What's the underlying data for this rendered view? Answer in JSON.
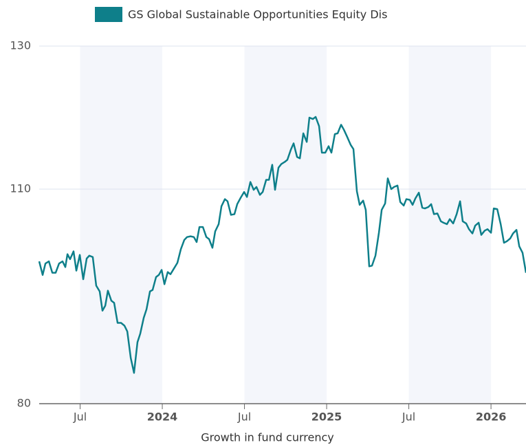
{
  "chart_data": {
    "type": "line",
    "x_title": "Growth in fund currency",
    "xlim": [
      2023.251,
      2026.213
    ],
    "xticks": [
      {
        "value": 2023.5,
        "label": "Jul"
      },
      2024,
      {
        "value": 2024.5,
        "label": "Jul"
      },
      2025,
      {
        "value": 2025.5,
        "label": "Jul"
      },
      2026
    ],
    "ylim": [
      80,
      130
    ],
    "yticks": [
      80,
      110,
      130
    ],
    "grid": true,
    "legend": "top",
    "series": [
      {
        "name": "GS Global Sustainable Opportunities Equity Dis",
        "color": "#0e7f8a",
        "x": [
          2023.251,
          2023.272,
          2023.289,
          2023.31,
          2023.331,
          2023.351,
          2023.372,
          2023.393,
          2023.41,
          2023.423,
          2023.439,
          2023.46,
          2023.477,
          2023.498,
          2023.519,
          2023.54,
          2023.556,
          2023.577,
          2023.598,
          2023.619,
          2023.636,
          2023.653,
          2023.669,
          2023.69,
          2023.707,
          2023.728,
          2023.749,
          2023.77,
          2023.787,
          2023.808,
          2023.828,
          2023.849,
          2023.866,
          2023.887,
          2023.904,
          2023.925,
          2023.941,
          2023.962,
          2023.979,
          2023.996,
          2024.013,
          2024.033,
          2024.05,
          2024.071,
          2024.092,
          2024.113,
          2024.134,
          2024.151,
          2024.172,
          2024.192,
          2024.209,
          2024.226,
          2024.247,
          2024.268,
          2024.285,
          2024.305,
          2024.322,
          2024.343,
          2024.36,
          2024.381,
          2024.397,
          2024.418,
          2024.439,
          2024.456,
          2024.477,
          2024.498,
          2024.515,
          2024.536,
          2024.556,
          2024.573,
          2024.594,
          2024.611,
          2024.632,
          2024.649,
          2024.669,
          2024.686,
          2024.707,
          2024.724,
          2024.745,
          2024.761,
          2024.782,
          2024.799,
          2024.82,
          2024.837,
          2024.858,
          2024.879,
          2024.895,
          2024.916,
          2024.933,
          2024.954,
          2024.971,
          2024.992,
          2025.012,
          2025.029,
          2025.05,
          2025.067,
          2025.088,
          2025.105,
          2025.125,
          2025.146,
          2025.163,
          2025.184,
          2025.201,
          2025.222,
          2025.238,
          2025.259,
          2025.276,
          2025.297,
          2025.318,
          2025.335,
          2025.356,
          2025.372,
          2025.393,
          2025.41,
          2025.431,
          2025.448,
          2025.469,
          2025.485,
          2025.506,
          2025.523,
          2025.54,
          2025.561,
          2025.582,
          2025.598,
          2025.619,
          2025.636,
          2025.653,
          2025.674,
          2025.695,
          2025.711,
          2025.732,
          2025.749,
          2025.77,
          2025.791,
          2025.812,
          2025.828,
          2025.849,
          2025.866,
          2025.887,
          2025.904,
          2025.925,
          2025.941,
          2025.962,
          2025.979,
          2026.0,
          2026.017,
          2026.038,
          2026.059,
          2026.079,
          2026.096,
          2026.117,
          2026.134,
          2026.155,
          2026.172,
          2026.192,
          2026.213
        ],
        "values": [
          99.9,
          98.0,
          99.6,
          99.9,
          98.3,
          98.3,
          99.6,
          99.9,
          99.1,
          100.9,
          100.2,
          101.3,
          98.6,
          100.8,
          97.4,
          100.3,
          100.7,
          100.5,
          96.5,
          95.7,
          93.0,
          93.7,
          95.8,
          94.4,
          94.1,
          91.3,
          91.3,
          90.9,
          90.1,
          86.4,
          84.3,
          88.6,
          89.8,
          92.0,
          93.2,
          95.7,
          95.9,
          97.7,
          98.0,
          98.7,
          96.7,
          98.4,
          98.1,
          98.9,
          99.7,
          101.6,
          102.9,
          103.3,
          103.4,
          103.3,
          102.6,
          104.7,
          104.7,
          103.3,
          103.0,
          101.8,
          104.1,
          105.1,
          107.6,
          108.6,
          108.3,
          106.4,
          106.5,
          107.9,
          108.8,
          109.6,
          108.9,
          111.0,
          109.9,
          110.3,
          109.2,
          109.6,
          111.3,
          111.3,
          113.4,
          109.9,
          113.0,
          113.5,
          113.8,
          114.1,
          115.5,
          116.4,
          114.5,
          114.3,
          117.8,
          116.6,
          120.0,
          119.8,
          120.1,
          118.8,
          115.1,
          115.1,
          116.0,
          115.1,
          117.7,
          117.8,
          119.0,
          118.3,
          117.3,
          116.2,
          115.6,
          109.7,
          107.8,
          108.4,
          107.1,
          99.2,
          99.3,
          100.7,
          103.9,
          107.1,
          108.0,
          111.5,
          110.0,
          110.3,
          110.5,
          108.2,
          107.7,
          108.6,
          108.5,
          107.8,
          108.7,
          109.5,
          107.4,
          107.3,
          107.5,
          107.9,
          106.5,
          106.6,
          105.5,
          105.3,
          105.1,
          105.8,
          105.2,
          106.5,
          108.3,
          105.5,
          105.2,
          104.4,
          103.8,
          104.9,
          105.3,
          103.6,
          104.2,
          104.4,
          103.9,
          107.3,
          107.2,
          105.1,
          102.5,
          102.7,
          103.1,
          103.8,
          104.3,
          102.0,
          101.1,
          98.3
        ]
      }
    ]
  }
}
